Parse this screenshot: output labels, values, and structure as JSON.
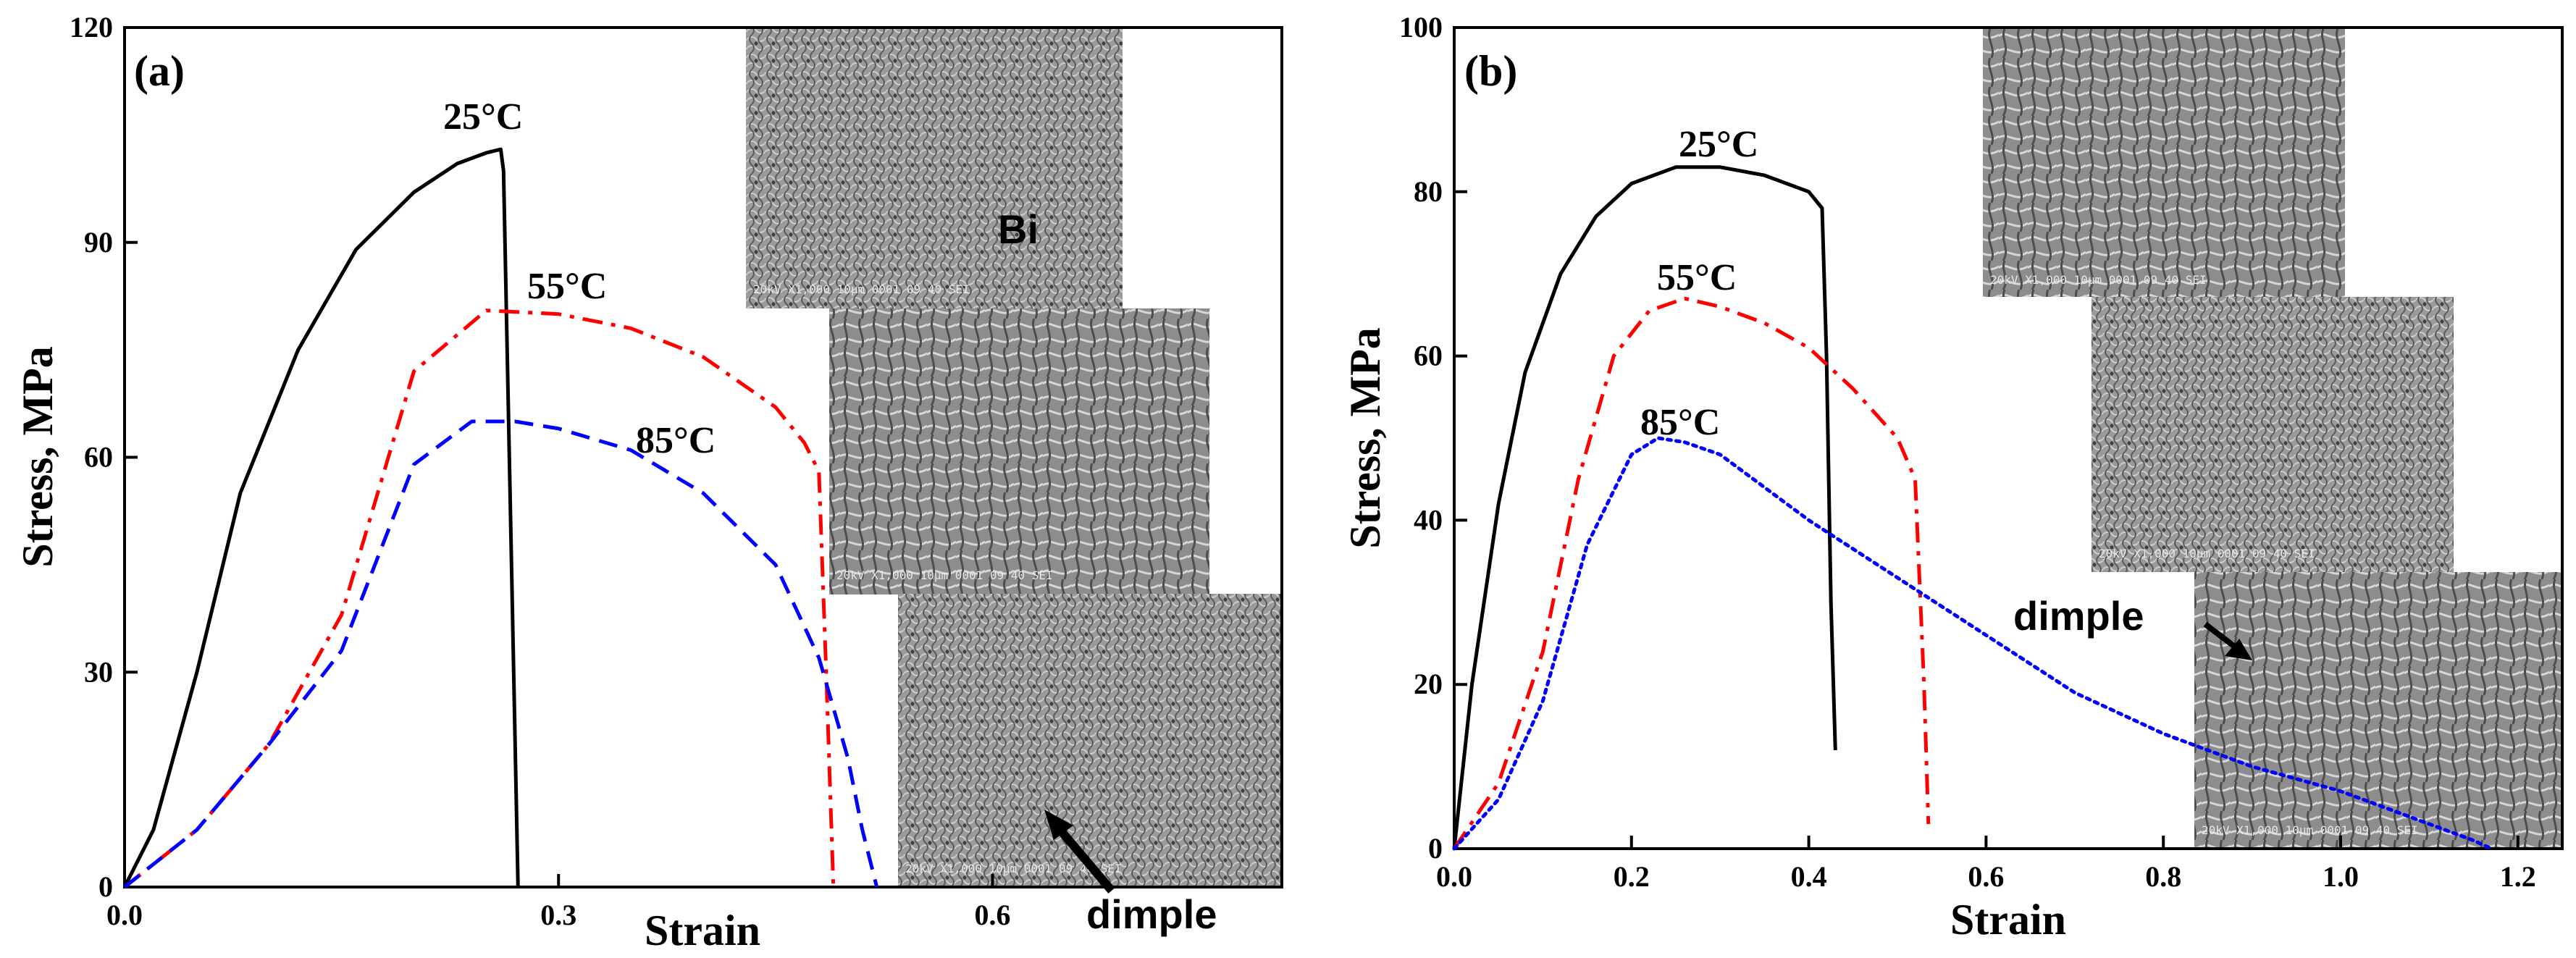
{
  "chart_data": [
    {
      "panel": "(a)",
      "type": "line",
      "xlabel": "Strain",
      "ylabel": "Stress, MPa",
      "xlim": [
        0,
        0.8
      ],
      "ylim": [
        0,
        120
      ],
      "xticks": [
        "0.0",
        "0.3",
        "0.6"
      ],
      "yticks": [
        "0",
        "30",
        "60",
        "90",
        "120"
      ],
      "series": [
        {
          "name": "25°C",
          "color": "#000000",
          "dash": "solid",
          "x": [
            0,
            0.02,
            0.05,
            0.08,
            0.12,
            0.16,
            0.2,
            0.23,
            0.25,
            0.26,
            0.262,
            0.268,
            0.272
          ],
          "y": [
            0,
            8,
            30,
            55,
            75,
            89,
            97,
            101,
            102.5,
            103,
            100,
            40,
            0
          ]
        },
        {
          "name": "55°C",
          "color": "#ff0000",
          "dash": "dashdot",
          "x": [
            0,
            0.05,
            0.1,
            0.15,
            0.2,
            0.25,
            0.3,
            0.35,
            0.4,
            0.45,
            0.47,
            0.48,
            0.485,
            0.49
          ],
          "y": [
            0,
            8,
            20,
            38,
            72,
            80.5,
            80,
            78,
            74,
            67,
            62,
            58,
            30,
            0
          ]
        },
        {
          "name": "85°C",
          "color": "#0000ff",
          "dash": "dashed",
          "x": [
            0,
            0.05,
            0.1,
            0.15,
            0.2,
            0.24,
            0.27,
            0.3,
            0.35,
            0.4,
            0.45,
            0.48,
            0.5,
            0.51,
            0.52
          ],
          "y": [
            0,
            8,
            20,
            33,
            59,
            65,
            65,
            64,
            61,
            55,
            45,
            32,
            18,
            8,
            0
          ]
        }
      ],
      "inset_labels": {
        "top": "Bi",
        "bottom_arrow": "dimple"
      }
    },
    {
      "panel": "(b)",
      "type": "line",
      "xlabel": "Strain",
      "ylabel": "Stress, MPa",
      "xlim": [
        0,
        1.25
      ],
      "ylim": [
        0,
        100
      ],
      "xticks": [
        "0.0",
        "0.2",
        "0.4",
        "0.6",
        "0.8",
        "1.0",
        "1.2"
      ],
      "yticks": [
        "0",
        "20",
        "40",
        "60",
        "80",
        "100"
      ],
      "series": [
        {
          "name": "25°C",
          "color": "#000000",
          "dash": "solid",
          "x": [
            0,
            0.02,
            0.05,
            0.08,
            0.12,
            0.16,
            0.2,
            0.25,
            0.3,
            0.35,
            0.4,
            0.415,
            0.42,
            0.425,
            0.43
          ],
          "y": [
            0,
            20,
            42,
            58,
            70,
            77,
            81,
            83,
            83,
            82,
            80,
            78,
            60,
            30,
            12
          ]
        },
        {
          "name": "55°C",
          "color": "#ff0000",
          "dash": "dashdot",
          "x": [
            0,
            0.05,
            0.1,
            0.14,
            0.18,
            0.22,
            0.26,
            0.3,
            0.35,
            0.4,
            0.45,
            0.5,
            0.52,
            0.53,
            0.535
          ],
          "y": [
            0,
            8,
            24,
            45,
            60,
            65.5,
            67,
            66,
            64,
            61,
            56,
            50,
            45,
            20,
            3
          ]
        },
        {
          "name": "85°C",
          "color": "#0000ff",
          "dash": "dotted",
          "x": [
            0,
            0.05,
            0.1,
            0.15,
            0.2,
            0.23,
            0.26,
            0.3,
            0.4,
            0.5,
            0.6,
            0.7,
            0.8,
            0.9,
            1.0,
            1.1,
            1.15,
            1.17
          ],
          "y": [
            0,
            6,
            18,
            37,
            48,
            50,
            49.5,
            48,
            40,
            33,
            26,
            19,
            14,
            10,
            7,
            3,
            1,
            0
          ]
        }
      ],
      "inset_labels": {
        "bottom_arrow": "dimple"
      }
    }
  ],
  "sem_caption": "20kV   X1,000   10μm  0001 09 40 SEI"
}
